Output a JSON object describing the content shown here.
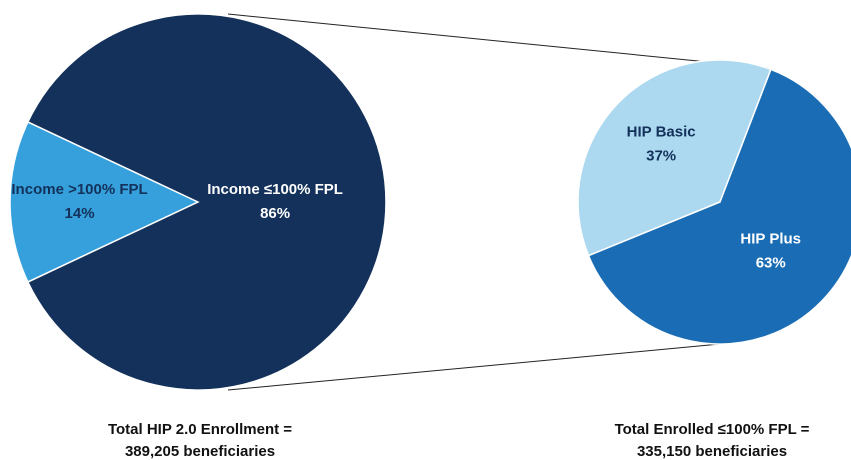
{
  "chart_data": [
    {
      "type": "pie",
      "categories": [
        "Income >100% FPL",
        "Income ≤100% FPL"
      ],
      "values": [
        14,
        86
      ],
      "value_labels": [
        "14%",
        "86%"
      ],
      "colors": [
        "#35a0dc",
        "#13315a"
      ],
      "caption": [
        "Total HIP 2.0 Enrollment =",
        "389,205 beneficiaries"
      ]
    },
    {
      "type": "pie",
      "categories": [
        "HIP Basic",
        "HIP Plus"
      ],
      "values": [
        37,
        63
      ],
      "value_labels": [
        "37%",
        "63%"
      ],
      "colors": [
        "#acd8f0",
        "#1a6db5"
      ],
      "caption": [
        "Total Enrolled ≤100% FPL =",
        "335,150 beneficiaries"
      ]
    }
  ]
}
